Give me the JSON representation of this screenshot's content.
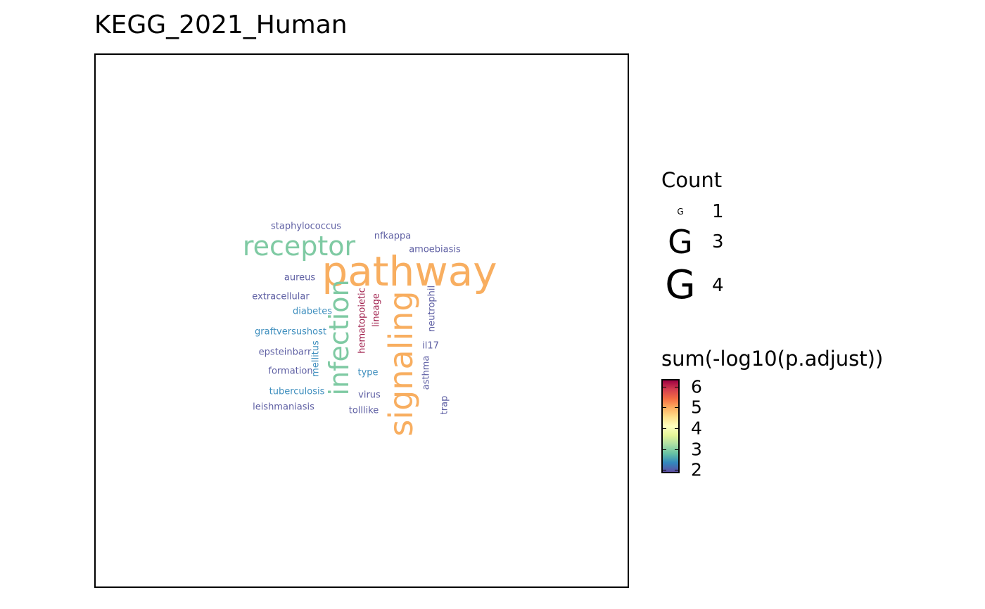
{
  "chart_data": {
    "type": "wordcloud",
    "title": "KEGG_2021_Human",
    "words": [
      {
        "word": "pathway",
        "count": 4,
        "value": 5.2,
        "color": "#f8ae60",
        "rotate": 0
      },
      {
        "word": "signaling",
        "count": 4,
        "value": 5.2,
        "color": "#f8ae60",
        "rotate": -90
      },
      {
        "word": "receptor",
        "count": 3,
        "value": 3.0,
        "color": "#7fcaa3",
        "rotate": 0
      },
      {
        "word": "infection",
        "count": 3,
        "value": 3.0,
        "color": "#7fcaa3",
        "rotate": -90
      },
      {
        "word": "staphylococcus",
        "count": 1,
        "value": 1.9,
        "color": "#5e5fa3",
        "rotate": 0
      },
      {
        "word": "nfkappa",
        "count": 1,
        "value": 1.9,
        "color": "#5e5fa3",
        "rotate": 0
      },
      {
        "word": "amoebiasis",
        "count": 1,
        "value": 1.9,
        "color": "#5e5fa3",
        "rotate": 0
      },
      {
        "word": "aureus",
        "count": 1,
        "value": 1.9,
        "color": "#5e5fa3",
        "rotate": 0
      },
      {
        "word": "extracellular",
        "count": 1,
        "value": 1.9,
        "color": "#5e5fa3",
        "rotate": 0
      },
      {
        "word": "diabetes",
        "count": 1,
        "value": 2.2,
        "color": "#3f8fbe",
        "rotate": 0
      },
      {
        "word": "graftversushost",
        "count": 1,
        "value": 2.2,
        "color": "#3f8fbe",
        "rotate": 0
      },
      {
        "word": "epsteinbarr",
        "count": 1,
        "value": 1.9,
        "color": "#5e5fa3",
        "rotate": 0
      },
      {
        "word": "formation",
        "count": 1,
        "value": 1.9,
        "color": "#5e5fa3",
        "rotate": 0
      },
      {
        "word": "tuberculosis",
        "count": 1,
        "value": 2.2,
        "color": "#3f8fbe",
        "rotate": 0
      },
      {
        "word": "leishmaniasis",
        "count": 1,
        "value": 1.9,
        "color": "#5e5fa3",
        "rotate": 0
      },
      {
        "word": "mellitus",
        "count": 1,
        "value": 2.2,
        "color": "#3f8fbe",
        "rotate": -90
      },
      {
        "word": "hematopoietic",
        "count": 1,
        "value": 6.2,
        "color": "#a0204d",
        "rotate": -90
      },
      {
        "word": "lineage",
        "count": 1,
        "value": 6.2,
        "color": "#a0204d",
        "rotate": -90
      },
      {
        "word": "type",
        "count": 1,
        "value": 2.2,
        "color": "#3f8fbe",
        "rotate": 0
      },
      {
        "word": "virus",
        "count": 1,
        "value": 1.9,
        "color": "#5e5fa3",
        "rotate": 0
      },
      {
        "word": "tolllike",
        "count": 1,
        "value": 1.9,
        "color": "#5e5fa3",
        "rotate": 0
      },
      {
        "word": "neutrophil",
        "count": 1,
        "value": 1.9,
        "color": "#5e5fa3",
        "rotate": -90
      },
      {
        "word": "il17",
        "count": 1,
        "value": 1.9,
        "color": "#5e5fa3",
        "rotate": 0
      },
      {
        "word": "asthma",
        "count": 1,
        "value": 1.9,
        "color": "#5e5fa3",
        "rotate": -90
      },
      {
        "word": "trap",
        "count": 1,
        "value": 1.9,
        "color": "#5e5fa3",
        "rotate": -90
      }
    ],
    "legend_count": {
      "title": "Count",
      "glyph": "G",
      "entries": [
        {
          "label": "1",
          "count": 1
        },
        {
          "label": "3",
          "count": 3
        },
        {
          "label": "4",
          "count": 4
        }
      ]
    },
    "legend_color": {
      "title": "sum(-log10(p.adjust))",
      "range": [
        1.9,
        6.3
      ],
      "ticks": [
        "6",
        "5",
        "4",
        "3",
        "2"
      ],
      "palette": [
        "#9e0142",
        "#d53e4f",
        "#f46d43",
        "#fdae61",
        "#fee08b",
        "#ffffbf",
        "#e6f598",
        "#abdda4",
        "#66c2a5",
        "#3288bd",
        "#5e4fa2"
      ],
      "legend_placement": "right"
    }
  }
}
